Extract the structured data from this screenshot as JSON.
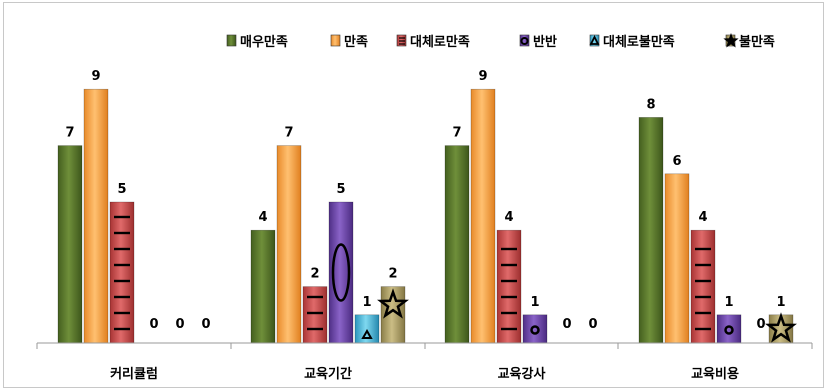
{
  "chart_data": {
    "type": "bar",
    "title": "",
    "xlabel": "",
    "ylabel": "",
    "ylim": [
      0,
      9
    ],
    "grid": false,
    "legend_position": "top-right",
    "categories": [
      "커리큘럼",
      "교육기간",
      "교육강사",
      "교육비용"
    ],
    "series": [
      {
        "name": "매우만족",
        "color": "#5a7a2e",
        "values": [
          7,
          4,
          7,
          8
        ]
      },
      {
        "name": "만족",
        "color": "#f6a24a",
        "values": [
          9,
          7,
          9,
          6
        ]
      },
      {
        "name": "대체로만족",
        "color": "#c64a4a",
        "values": [
          5,
          2,
          4,
          4
        ]
      },
      {
        "name": "반반",
        "color": "#6a43a6",
        "values": [
          0,
          5,
          1,
          1
        ]
      },
      {
        "name": "대체로불만족",
        "color": "#3fb0d4",
        "values": [
          0,
          1,
          0,
          0
        ]
      },
      {
        "name": "불만족",
        "color": "#a99a62",
        "values": [
          0,
          2,
          0,
          1
        ]
      }
    ]
  }
}
